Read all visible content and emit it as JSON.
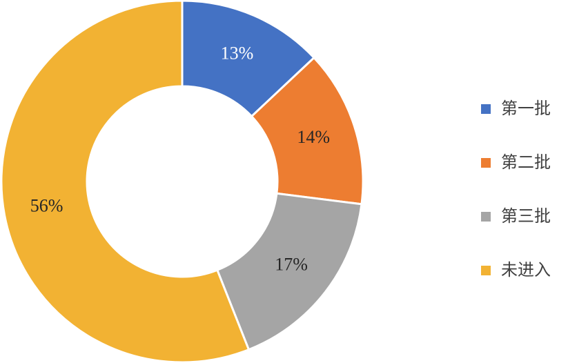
{
  "chart_data": {
    "type": "donut",
    "categories": [
      "第一批",
      "第二批",
      "第三批",
      "未进入"
    ],
    "values": [
      13,
      14,
      17,
      56
    ],
    "value_labels": [
      "13%",
      "14%",
      "17%",
      "56%"
    ],
    "colors": [
      "#4472c4",
      "#ed7d31",
      "#a5a5a5",
      "#f2b233"
    ],
    "legend": "right"
  }
}
